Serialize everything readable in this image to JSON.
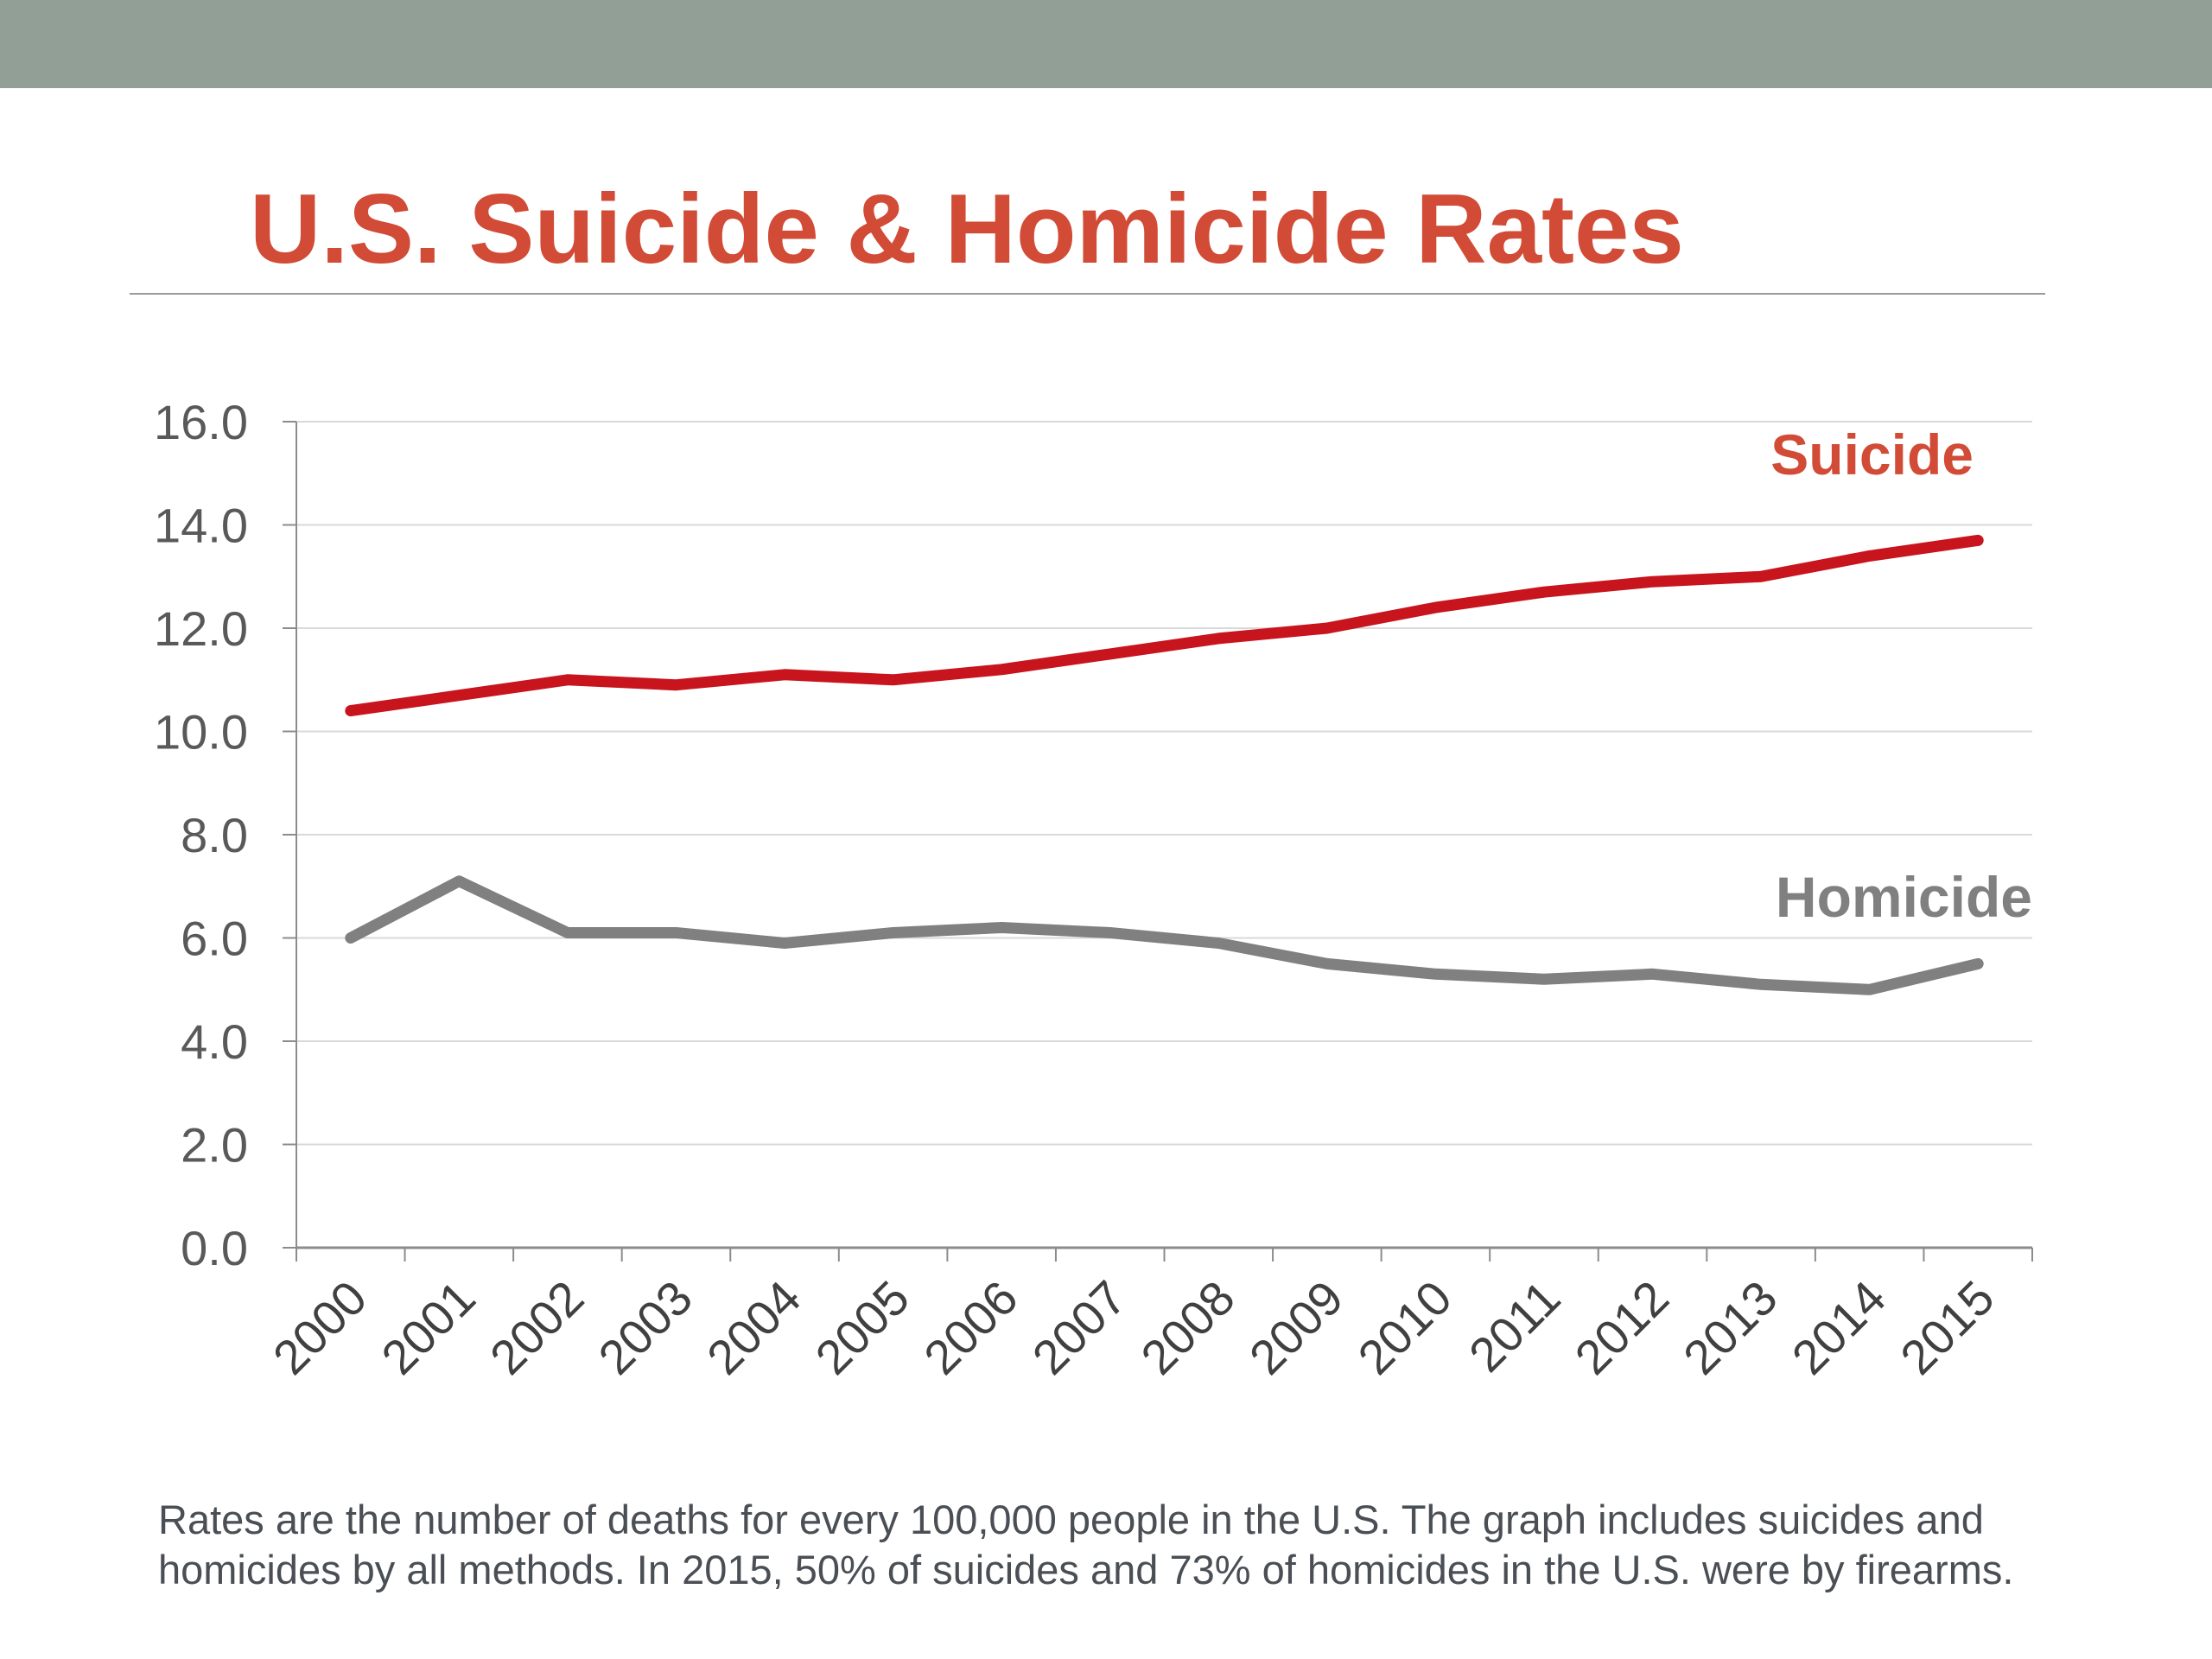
{
  "slide": {
    "title": "U.S. Suicide & Homicide Rates",
    "caption_line1": "Rates are the number of deaths for every 100,000 people in the U.S. The graph includes suicides and",
    "caption_line2": "homicides by all methods. In 2015, 50% of suicides and 73% of homicides in the U.S. were by firearms.",
    "colors": {
      "top_bar": "#919f97",
      "title": "#d14b36"
    }
  },
  "chart_data": {
    "type": "line",
    "title": "U.S. Suicide & Homicide Rates",
    "xlabel": "",
    "ylabel": "",
    "categories": [
      "2000",
      "2001",
      "2002",
      "2003",
      "2004",
      "2005",
      "2006",
      "2007",
      "2008",
      "2009",
      "2010",
      "2011",
      "2012",
      "2013",
      "2014",
      "2015"
    ],
    "y_ticks": [
      "0.0",
      "2.0",
      "4.0",
      "6.0",
      "8.0",
      "10.0",
      "12.0",
      "14.0",
      "16.0"
    ],
    "ylim": [
      0,
      16
    ],
    "grid": true,
    "legend": "inline labels at right end of each series",
    "series": [
      {
        "name": "Suicide",
        "color": "#c8141c",
        "label_color": "#d14b36",
        "values": [
          10.4,
          10.7,
          11.0,
          10.9,
          11.1,
          11.0,
          11.2,
          11.5,
          11.8,
          12.0,
          12.4,
          12.7,
          12.9,
          13.0,
          13.4,
          13.7
        ]
      },
      {
        "name": "Homicide",
        "color": "#808080",
        "label_color": "#808080",
        "values": [
          6.0,
          7.1,
          6.1,
          6.1,
          5.9,
          6.1,
          6.2,
          6.1,
          5.9,
          5.5,
          5.3,
          5.2,
          5.3,
          5.1,
          5.0,
          5.5
        ]
      }
    ]
  }
}
